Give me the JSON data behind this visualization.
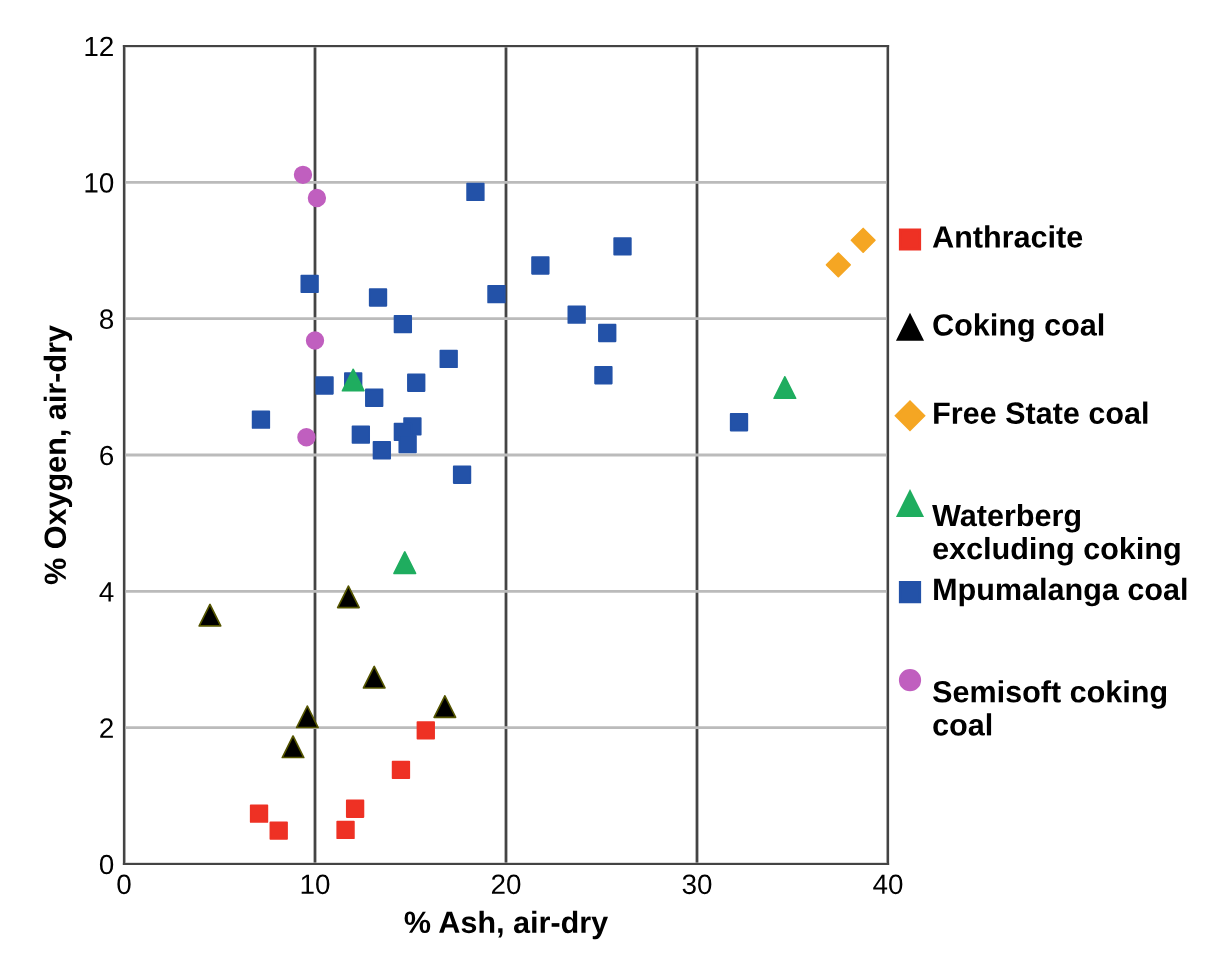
{
  "chart_data": {
    "type": "scatter",
    "xlabel": "% Ash, air-dry",
    "ylabel": "% Oxygen, air-dry",
    "xlim": [
      0,
      40
    ],
    "xticks": [
      0,
      10,
      20,
      30,
      40
    ],
    "ylim": [
      0,
      12
    ],
    "yticks": [
      0,
      2,
      4,
      6,
      8,
      10,
      12
    ],
    "grid": true,
    "legend": "right",
    "series": [
      {
        "name": "Anthracite",
        "color": "#ee3124",
        "marker": "square",
        "x": [
          15.8,
          14.5,
          7.07,
          8.1,
          12.1,
          11.6
        ],
        "values": [
          1.96,
          1.38,
          0.74,
          0.49,
          0.81,
          0.5
        ]
      },
      {
        "name": "Coking coal",
        "color": "#000000",
        "marker": "triangle",
        "x": [
          4.5,
          11.75,
          13.1,
          16.8,
          9.6,
          8.85
        ],
        "values": [
          3.65,
          3.92,
          2.74,
          2.31,
          2.16,
          1.72
        ]
      },
      {
        "name": "Free State coal",
        "color": "#f5a623",
        "marker": "diamond",
        "x": [
          38.7,
          37.4
        ],
        "values": [
          9.15,
          8.79
        ]
      },
      {
        "name": "Waterberg excluding coking",
        "color": "#1fad5f",
        "marker": "triangle",
        "x": [
          14.7,
          34.6,
          12.0
        ],
        "values": [
          4.42,
          6.99,
          7.1
        ]
      },
      {
        "name": "Mpumalanga coal",
        "color": "#2352a8",
        "marker": "square",
        "x": [
          18.4,
          21.8,
          9.72,
          13.3,
          19.5,
          14.6,
          17.0,
          10.5,
          12.0,
          15.3,
          13.1,
          7.17,
          12.4,
          15.1,
          14.6,
          14.85,
          13.5,
          17.7,
          26.1,
          23.7,
          25.3,
          25.1,
          32.2
        ],
        "values": [
          9.86,
          8.78,
          8.51,
          8.31,
          8.36,
          7.92,
          7.41,
          7.02,
          7.08,
          7.06,
          6.84,
          6.52,
          6.3,
          6.42,
          6.34,
          6.16,
          6.07,
          5.71,
          9.06,
          8.06,
          7.79,
          7.17,
          6.48
        ]
      },
      {
        "name": "Semisoft coking coal",
        "color": "#c05fbf",
        "marker": "circle",
        "x": [
          9.37,
          10.1,
          10.0,
          9.55
        ],
        "values": [
          10.11,
          9.77,
          7.68,
          6.26
        ]
      }
    ]
  }
}
